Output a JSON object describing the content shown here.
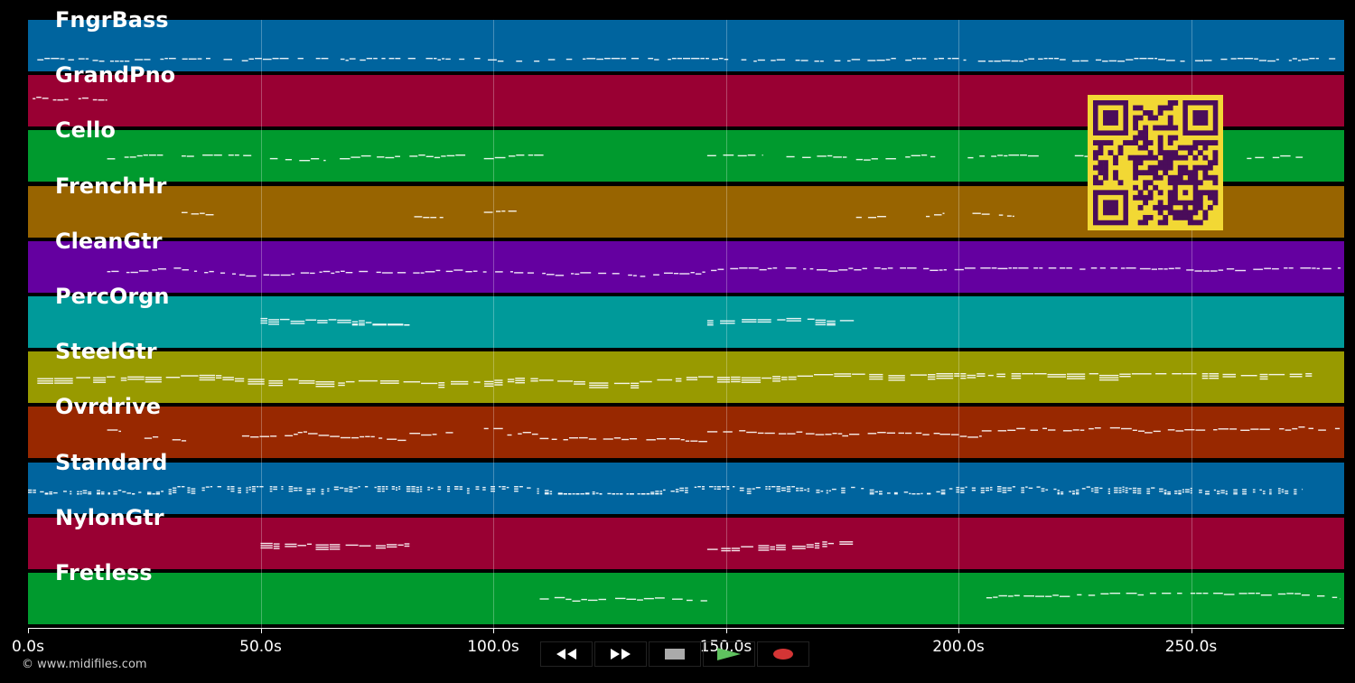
{
  "colors": {
    "background": "#000000",
    "note": "#ffffff",
    "qr_fg": "#4a0d5a",
    "qr_bg": "#f2d834"
  },
  "tracks": [
    {
      "name": "FngrBass",
      "color": "#00649e",
      "pattern": "low-continuous"
    },
    {
      "name": "GrandPno",
      "color": "#990033",
      "pattern": "intro-short"
    },
    {
      "name": "Cello",
      "color": "#009a2e",
      "pattern": "phrases"
    },
    {
      "name": "FrenchHr",
      "color": "#986400",
      "pattern": "sparse"
    },
    {
      "name": "CleanGtr",
      "color": "#6400a0",
      "pattern": "dense-chords"
    },
    {
      "name": "PercOrgn",
      "color": "#009a9a",
      "pattern": "two-blocks"
    },
    {
      "name": "SteelGtr",
      "color": "#989a00",
      "pattern": "very-dense"
    },
    {
      "name": "Ovrdrive",
      "color": "#982800",
      "pattern": "lead"
    },
    {
      "name": "Standard",
      "color": "#00649e",
      "pattern": "drums"
    },
    {
      "name": "NylonGtr",
      "color": "#990033",
      "pattern": "two-blocks-chords"
    },
    {
      "name": "Fretless",
      "color": "#009a2e",
      "pattern": "late-lines"
    }
  ],
  "axis": {
    "ticks": [
      "0.0s",
      "50.0s",
      "100.0s",
      "150.0s",
      "200.0s",
      "250.0s"
    ],
    "max_seconds": 283
  },
  "footer": {
    "copyright": "© www.midifiles.com"
  },
  "transport": {
    "buttons": [
      {
        "name": "rewind-button",
        "icon": "rewind-icon",
        "bg": "#151515"
      },
      {
        "name": "fast-forward-button",
        "icon": "fast-forward-icon",
        "bg": "#151515"
      },
      {
        "name": "stop-button",
        "icon": "stop-icon",
        "bg": "#333333"
      },
      {
        "name": "play-button",
        "icon": "play-icon",
        "bg": "#0f4a1e"
      },
      {
        "name": "record-button",
        "icon": "record-icon",
        "bg": "#3a1010"
      }
    ]
  },
  "qr_code": {
    "icon": "qr-code-icon"
  }
}
